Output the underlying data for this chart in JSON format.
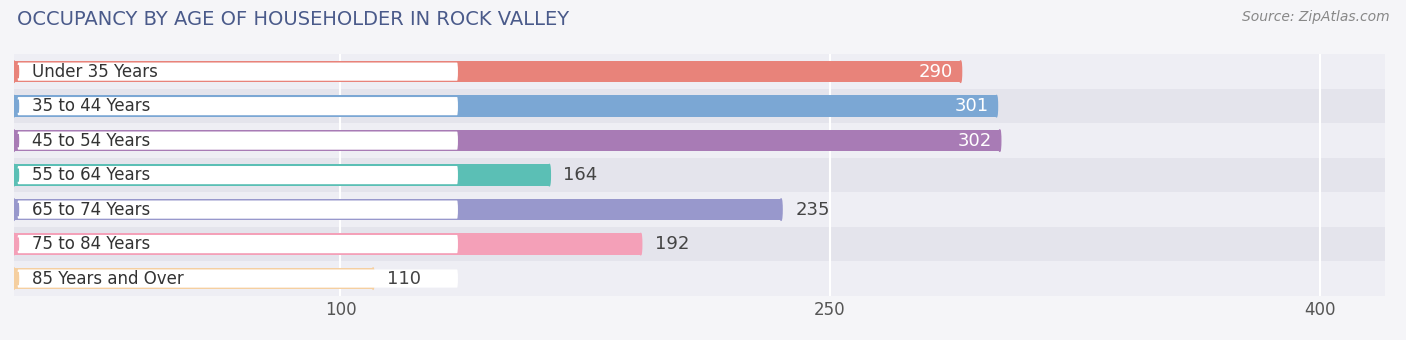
{
  "title": "OCCUPANCY BY AGE OF HOUSEHOLDER IN ROCK VALLEY",
  "source": "Source: ZipAtlas.com",
  "categories": [
    "Under 35 Years",
    "35 to 44 Years",
    "45 to 54 Years",
    "55 to 64 Years",
    "65 to 74 Years",
    "75 to 84 Years",
    "85 Years and Over"
  ],
  "values": [
    290,
    301,
    302,
    164,
    235,
    192,
    110
  ],
  "bar_colors": [
    "#E8837A",
    "#7BA7D4",
    "#A87BB5",
    "#5BBFB5",
    "#9898CC",
    "#F4A0B8",
    "#F5CFA0"
  ],
  "value_white": [
    true,
    true,
    true,
    false,
    false,
    false,
    false
  ],
  "xlim": [
    0,
    420
  ],
  "xticks": [
    100,
    250,
    400
  ],
  "bar_height": 0.62,
  "row_bg_light": "#eeeef4",
  "row_bg_dark": "#e4e4ec",
  "fig_bg": "#f5f5f8",
  "title_fontsize": 14,
  "source_fontsize": 10,
  "label_fontsize": 12,
  "tick_fontsize": 12,
  "value_fontsize": 13
}
